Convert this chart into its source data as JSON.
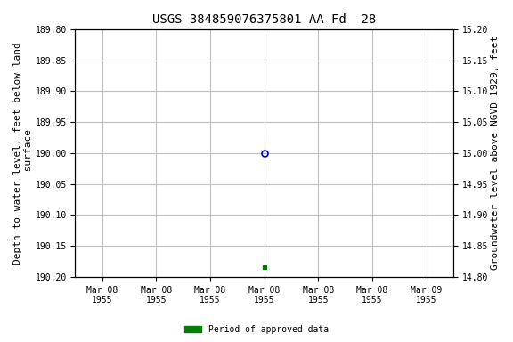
{
  "title": "USGS 384859076375801 AA Fd  28",
  "ylabel_left": "Depth to water level, feet below land\n surface",
  "ylabel_right": "Groundwater level above NGVD 1929, feet",
  "ylim_left": [
    190.2,
    189.8
  ],
  "ylim_right": [
    14.8,
    15.2
  ],
  "yticks_left": [
    189.8,
    189.85,
    189.9,
    189.95,
    190.0,
    190.05,
    190.1,
    190.15,
    190.2
  ],
  "yticks_right": [
    14.8,
    14.85,
    14.9,
    14.95,
    15.0,
    15.05,
    15.1,
    15.15,
    15.2
  ],
  "data_point_y": 190.0,
  "data_point_color": "#0000bb",
  "green_point_y": 190.185,
  "green_point_color": "#008000",
  "background_color": "#ffffff",
  "grid_color": "#c0c0c0",
  "title_fontsize": 10,
  "axis_label_fontsize": 8,
  "tick_fontsize": 7,
  "legend_label": "Period of approved data",
  "legend_color": "#008000",
  "font_family": "monospace",
  "x_tick_offsets_hours": [
    0,
    4,
    8,
    12,
    16,
    20,
    24
  ],
  "x_tick_labels": [
    "Mar 08\n1955",
    "Mar 08\n1955",
    "Mar 08\n1955",
    "Mar 08\n1955",
    "Mar 08\n1955",
    "Mar 08\n1955",
    "Mar 09\n1955"
  ],
  "data_point_tick_index": 3,
  "green_point_tick_index": 3
}
